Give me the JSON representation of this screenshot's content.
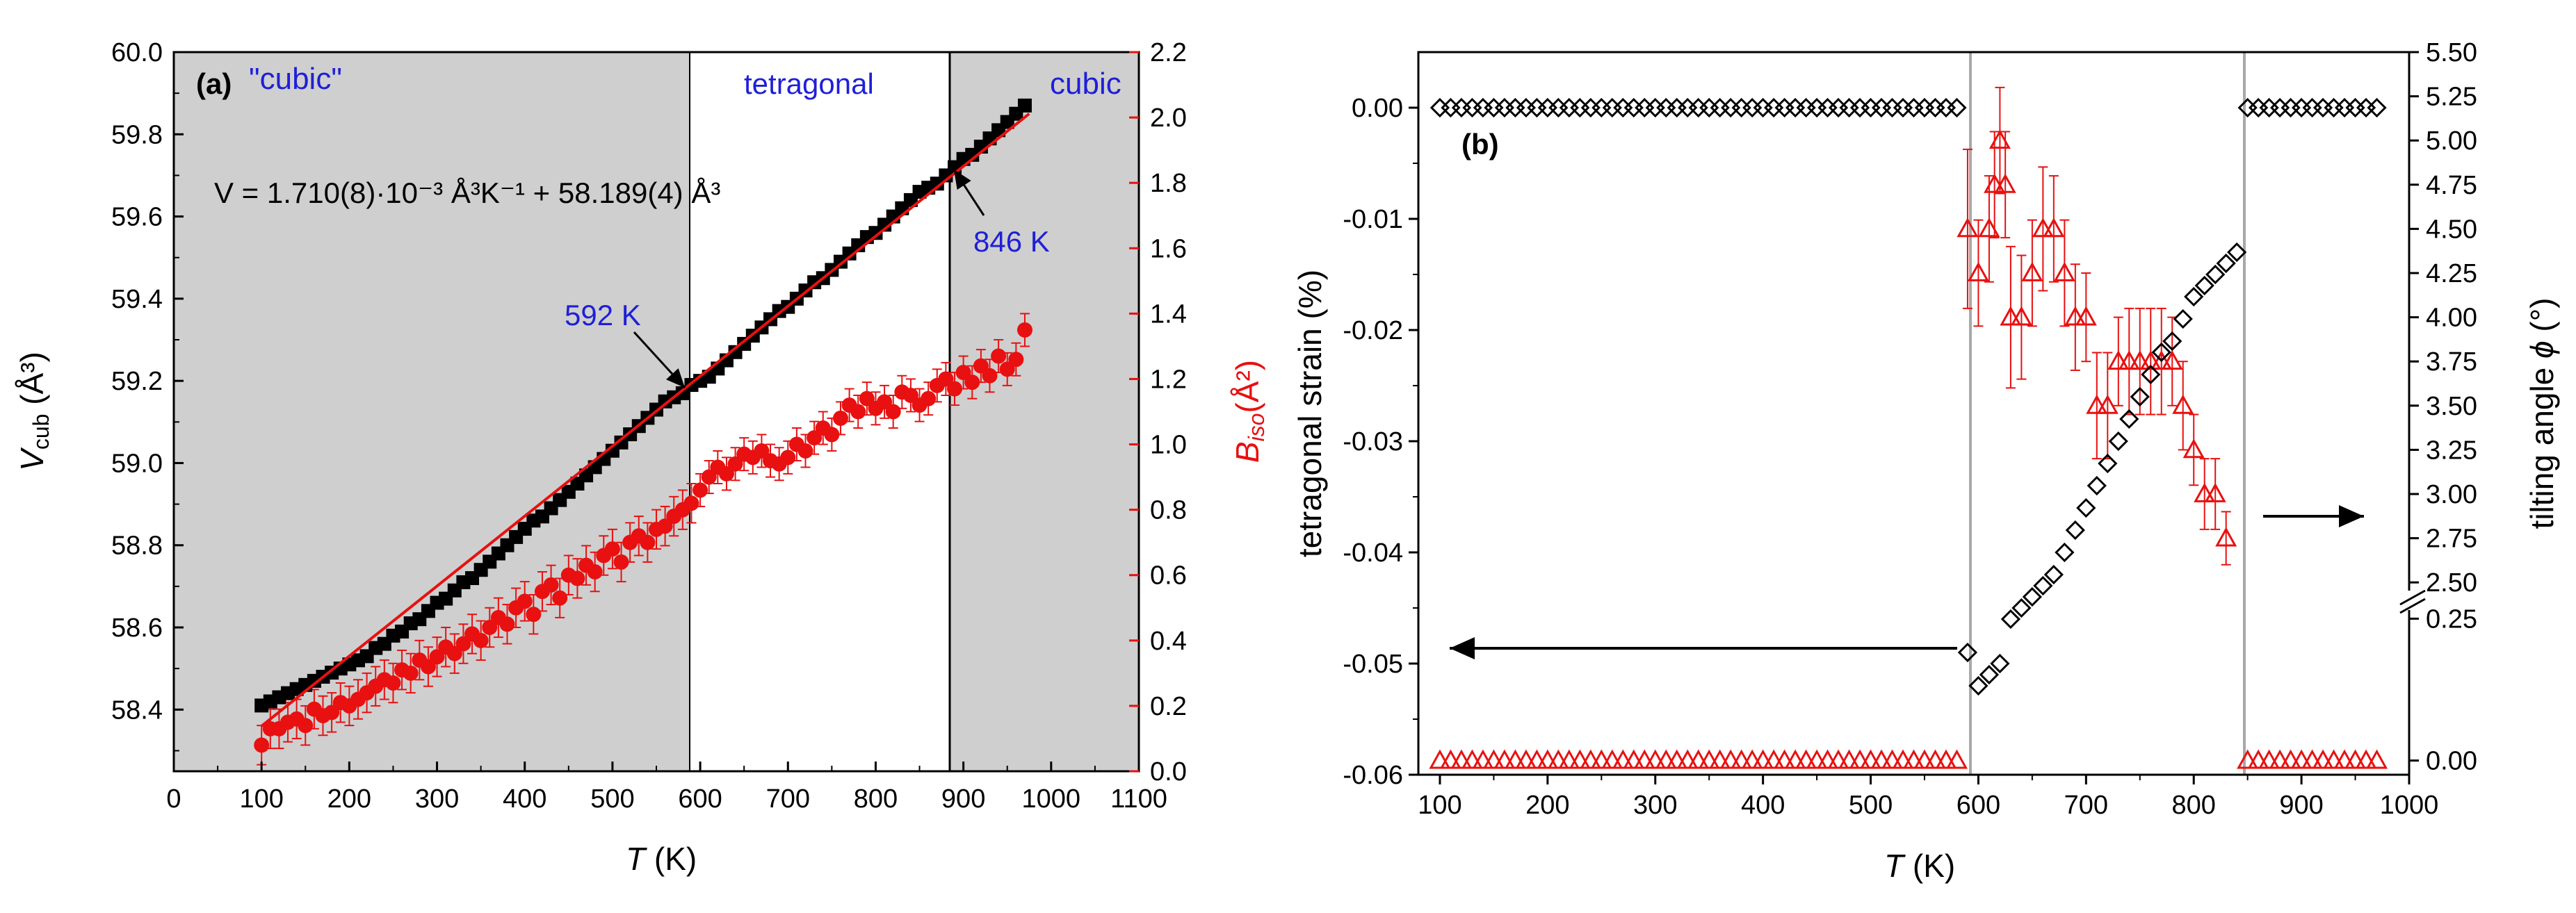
{
  "chart_data": [
    {
      "panel_label": "(a)",
      "type": "scatter",
      "title": "",
      "xlabel_italic": "T",
      "xlabel_unit": " (K)",
      "xlim": [
        0,
        1100
      ],
      "x_ticks": [
        "0",
        "100",
        "200",
        "300",
        "400",
        "500",
        "600",
        "700",
        "800",
        "900",
        "1000",
        "1100"
      ],
      "ylabel_left_main": "V",
      "ylabel_left_sub": "cub",
      "ylabel_left_unit": " (Å³)",
      "ylim_left": [
        58.25,
        60.0
      ],
      "y_ticks_left": [
        "58.4",
        "58.6",
        "58.8",
        "59.0",
        "59.2",
        "59.4",
        "59.6",
        "59.8",
        "60.0"
      ],
      "ylabel_right_main": "B",
      "ylabel_right_sub": "iso",
      "ylabel_right_unit": "(Å²)",
      "ylim_right": [
        0.0,
        2.2
      ],
      "y_ticks_right": [
        "0.0",
        "0.2",
        "0.4",
        "0.6",
        "0.8",
        "1.0",
        "1.2",
        "1.4",
        "1.6",
        "1.8",
        "2.0",
        "2.2"
      ],
      "shaded_regions_T": [
        [
          0,
          592
        ],
        [
          883,
          1100
        ]
      ],
      "region_labels": {
        "left": "\"cubic\"",
        "middle": "tetragonal",
        "right": "cubic"
      },
      "equation": "V = 1.710(8)·10⁻³ Å³K⁻¹ + 58.189(4) Å³",
      "annotations": [
        {
          "text": "592 K",
          "x": 592,
          "y": 59.19
        },
        {
          "text": "846 K",
          "x": 883,
          "y": 59.74
        }
      ],
      "fit_line": {
        "name": "linear fit",
        "x": [
          100,
          975
        ],
        "y": [
          58.36,
          59.85
        ]
      },
      "series": [
        {
          "name": "V_cub",
          "axis": "left",
          "marker": "square",
          "color": "#000000",
          "x": [
            100,
            110,
            120,
            130,
            140,
            150,
            160,
            170,
            180,
            190,
            200,
            210,
            220,
            230,
            240,
            250,
            260,
            270,
            280,
            290,
            300,
            310,
            320,
            330,
            340,
            350,
            360,
            370,
            380,
            390,
            400,
            410,
            420,
            430,
            440,
            450,
            460,
            470,
            480,
            490,
            500,
            510,
            520,
            530,
            540,
            550,
            560,
            570,
            580,
            590,
            600,
            610,
            620,
            630,
            640,
            650,
            660,
            670,
            680,
            690,
            700,
            710,
            720,
            730,
            740,
            750,
            760,
            770,
            780,
            790,
            800,
            810,
            820,
            830,
            840,
            850,
            860,
            870,
            880,
            890,
            900,
            910,
            920,
            930,
            940,
            950,
            960,
            970
          ],
          "y": [
            58.41,
            58.42,
            58.43,
            58.44,
            58.45,
            58.46,
            58.47,
            58.48,
            58.49,
            58.5,
            58.51,
            58.52,
            58.53,
            58.55,
            58.56,
            58.58,
            58.59,
            58.61,
            58.62,
            58.64,
            58.66,
            58.67,
            58.69,
            58.71,
            58.72,
            58.74,
            58.76,
            58.78,
            58.8,
            58.82,
            58.84,
            58.86,
            58.87,
            58.89,
            58.91,
            58.93,
            58.95,
            58.97,
            58.99,
            59.01,
            59.03,
            59.05,
            59.07,
            59.09,
            59.11,
            59.13,
            59.15,
            59.16,
            59.17,
            59.19,
            59.2,
            59.21,
            59.23,
            59.25,
            59.27,
            59.29,
            59.31,
            59.33,
            59.35,
            59.37,
            59.38,
            59.4,
            59.42,
            59.44,
            59.45,
            59.47,
            59.49,
            59.51,
            59.53,
            59.55,
            59.56,
            59.58,
            59.6,
            59.62,
            59.64,
            59.66,
            59.67,
            59.68,
            59.7,
            59.72,
            59.74,
            59.75,
            59.77,
            59.79,
            59.81,
            59.83,
            59.85,
            59.87
          ]
        },
        {
          "name": "B_iso",
          "axis": "right",
          "marker": "circle",
          "color": "#e81010",
          "error_bars": true,
          "x": [
            100,
            110,
            120,
            130,
            140,
            150,
            160,
            170,
            180,
            190,
            200,
            210,
            220,
            230,
            240,
            250,
            260,
            270,
            280,
            290,
            300,
            310,
            320,
            330,
            340,
            350,
            360,
            370,
            380,
            390,
            400,
            410,
            420,
            430,
            440,
            450,
            460,
            470,
            480,
            490,
            500,
            510,
            520,
            530,
            540,
            550,
            560,
            570,
            580,
            590,
            600,
            610,
            620,
            630,
            640,
            650,
            660,
            670,
            680,
            690,
            700,
            710,
            720,
            730,
            740,
            750,
            760,
            770,
            780,
            790,
            800,
            810,
            820,
            830,
            840,
            850,
            860,
            870,
            880,
            890,
            900,
            910,
            920,
            930,
            940,
            950,
            960,
            970
          ],
          "y": [
            0.08,
            0.13,
            0.13,
            0.15,
            0.16,
            0.14,
            0.19,
            0.17,
            0.18,
            0.21,
            0.2,
            0.22,
            0.24,
            0.26,
            0.28,
            0.27,
            0.31,
            0.3,
            0.34,
            0.32,
            0.35,
            0.38,
            0.36,
            0.39,
            0.42,
            0.4,
            0.44,
            0.47,
            0.45,
            0.5,
            0.52,
            0.48,
            0.55,
            0.57,
            0.53,
            0.6,
            0.59,
            0.63,
            0.61,
            0.66,
            0.68,
            0.64,
            0.7,
            0.72,
            0.7,
            0.74,
            0.75,
            0.78,
            0.8,
            0.82,
            0.86,
            0.9,
            0.93,
            0.91,
            0.94,
            0.97,
            0.96,
            0.98,
            0.95,
            0.94,
            0.96,
            1.0,
            0.98,
            1.02,
            1.05,
            1.03,
            1.08,
            1.12,
            1.1,
            1.14,
            1.11,
            1.13,
            1.1,
            1.16,
            1.15,
            1.12,
            1.14,
            1.18,
            1.2,
            1.17,
            1.22,
            1.19,
            1.24,
            1.21,
            1.27,
            1.23,
            1.26,
            1.35
          ],
          "err": [
            0.06,
            0.06,
            0.06,
            0.06,
            0.06,
            0.06,
            0.06,
            0.06,
            0.06,
            0.06,
            0.06,
            0.06,
            0.06,
            0.06,
            0.06,
            0.06,
            0.06,
            0.06,
            0.06,
            0.06,
            0.06,
            0.06,
            0.06,
            0.06,
            0.06,
            0.06,
            0.06,
            0.06,
            0.06,
            0.06,
            0.06,
            0.06,
            0.06,
            0.06,
            0.06,
            0.06,
            0.06,
            0.06,
            0.06,
            0.06,
            0.06,
            0.06,
            0.06,
            0.06,
            0.06,
            0.06,
            0.06,
            0.06,
            0.06,
            0.06,
            0.05,
            0.05,
            0.05,
            0.05,
            0.05,
            0.05,
            0.05,
            0.05,
            0.05,
            0.05,
            0.05,
            0.05,
            0.05,
            0.05,
            0.05,
            0.05,
            0.05,
            0.05,
            0.05,
            0.05,
            0.05,
            0.05,
            0.05,
            0.05,
            0.05,
            0.05,
            0.05,
            0.05,
            0.05,
            0.05,
            0.05,
            0.05,
            0.05,
            0.05,
            0.05,
            0.05,
            0.05,
            0.05
          ]
        }
      ]
    },
    {
      "panel_label": "(b)",
      "type": "scatter",
      "title": "",
      "xlabel_italic": "T",
      "xlabel_unit": " (K)",
      "xlim": [
        80,
        1000
      ],
      "x_ticks": [
        "100",
        "200",
        "300",
        "400",
        "500",
        "600",
        "700",
        "800",
        "900",
        "1000"
      ],
      "ylabel_left": "tetragonal strain (%)",
      "ylim_left": [
        -0.06,
        0.005
      ],
      "y_ticks_left": [
        "0.00",
        "-0.01",
        "-0.02",
        "-0.03",
        "-0.04",
        "-0.05",
        "-0.06"
      ],
      "ylabel_right_text": "tilting angle ",
      "ylabel_right_symbol": "ϕ",
      "ylabel_right_unit": " (°)",
      "y_ticks_right_upper": [
        "2.50",
        "2.75",
        "3.00",
        "3.25",
        "3.50",
        "3.75",
        "4.00",
        "4.25",
        "4.50",
        "4.75",
        "5.00",
        "5.25",
        "5.50"
      ],
      "ylim_right_upper": [
        2.375,
        5.5
      ],
      "y_ticks_right_lower": [
        "0.00",
        "0.25"
      ],
      "ylim_right_lower": [
        -0.025,
        0.275
      ],
      "phase_boundaries_T": [
        588,
        843
      ],
      "series": [
        {
          "name": "tetragonal strain",
          "axis": "left",
          "marker": "diamond",
          "color": "#000000",
          "x": [
            100,
            110,
            120,
            130,
            140,
            150,
            160,
            170,
            180,
            190,
            200,
            210,
            220,
            230,
            240,
            250,
            260,
            270,
            280,
            290,
            300,
            310,
            320,
            330,
            340,
            350,
            360,
            370,
            380,
            390,
            400,
            410,
            420,
            430,
            440,
            450,
            460,
            470,
            480,
            490,
            500,
            510,
            520,
            530,
            540,
            550,
            560,
            570,
            580,
            590,
            600,
            610,
            620,
            630,
            640,
            650,
            660,
            670,
            680,
            690,
            700,
            710,
            720,
            730,
            740,
            750,
            760,
            770,
            780,
            790,
            800,
            810,
            820,
            830,
            840,
            850,
            860,
            870,
            880,
            890,
            900,
            910,
            920,
            930,
            940,
            950,
            960,
            970
          ],
          "y": [
            0,
            0,
            0,
            0,
            0,
            0,
            0,
            0,
            0,
            0,
            0,
            0,
            0,
            0,
            0,
            0,
            0,
            0,
            0,
            0,
            0,
            0,
            0,
            0,
            0,
            0,
            0,
            0,
            0,
            0,
            0,
            0,
            0,
            0,
            0,
            0,
            0,
            0,
            0,
            0,
            0,
            0,
            0,
            0,
            0,
            0,
            0,
            0,
            0,
            -0.049,
            -0.052,
            -0.051,
            -0.05,
            -0.046,
            -0.045,
            -0.044,
            -0.043,
            -0.042,
            -0.04,
            -0.038,
            -0.036,
            -0.034,
            -0.032,
            -0.03,
            -0.028,
            -0.026,
            -0.024,
            -0.022,
            -0.021,
            -0.019,
            -0.017,
            -0.016,
            -0.015,
            -0.014,
            -0.013,
            0,
            0,
            0,
            0,
            0,
            0,
            0,
            0,
            0,
            0,
            0,
            0,
            0
          ]
        },
        {
          "name": "tilting angle",
          "axis": "right",
          "marker": "triangle",
          "color": "#e81010",
          "error_bars": true,
          "x": [
            100,
            110,
            120,
            130,
            140,
            150,
            160,
            170,
            180,
            190,
            200,
            210,
            220,
            230,
            240,
            250,
            260,
            270,
            280,
            290,
            300,
            310,
            320,
            330,
            340,
            350,
            360,
            370,
            380,
            390,
            400,
            410,
            420,
            430,
            440,
            450,
            460,
            470,
            480,
            490,
            500,
            510,
            520,
            530,
            540,
            550,
            560,
            570,
            580,
            590,
            600,
            610,
            615,
            620,
            625,
            630,
            640,
            650,
            660,
            670,
            680,
            690,
            700,
            710,
            720,
            730,
            740,
            750,
            760,
            770,
            780,
            790,
            800,
            810,
            820,
            830,
            850,
            860,
            870,
            880,
            890,
            900,
            910,
            920,
            930,
            940,
            950,
            960,
            970
          ],
          "y": [
            0,
            0,
            0,
            0,
            0,
            0,
            0,
            0,
            0,
            0,
            0,
            0,
            0,
            0,
            0,
            0,
            0,
            0,
            0,
            0,
            0,
            0,
            0,
            0,
            0,
            0,
            0,
            0,
            0,
            0,
            0,
            0,
            0,
            0,
            0,
            0,
            0,
            0,
            0,
            0,
            0,
            0,
            0,
            0,
            0,
            0,
            0,
            0,
            0,
            4.5,
            4.25,
            4.5,
            4.75,
            5.0,
            4.75,
            4.0,
            4.0,
            4.25,
            4.5,
            4.5,
            4.25,
            4.0,
            4.0,
            3.5,
            3.5,
            3.75,
            3.75,
            3.75,
            3.75,
            3.75,
            3.75,
            3.5,
            3.25,
            3.0,
            3.0,
            2.75,
            0,
            0,
            0,
            0,
            0,
            0,
            0,
            0,
            0,
            0,
            0,
            0,
            0
          ],
          "err": [
            0,
            0,
            0,
            0,
            0,
            0,
            0,
            0,
            0,
            0,
            0,
            0,
            0,
            0,
            0,
            0,
            0,
            0,
            0,
            0,
            0,
            0,
            0,
            0,
            0,
            0,
            0,
            0,
            0,
            0,
            0,
            0,
            0,
            0,
            0,
            0,
            0,
            0,
            0,
            0,
            0,
            0,
            0,
            0,
            0,
            0,
            0,
            0,
            0,
            0.45,
            0.3,
            0.3,
            0.3,
            0.3,
            0.3,
            0.4,
            0.35,
            0.3,
            0.35,
            0.3,
            0.3,
            0.3,
            0.25,
            0.3,
            0.3,
            0.25,
            0.3,
            0.3,
            0.3,
            0.3,
            0.25,
            0.25,
            0.2,
            0.2,
            0.2,
            0.15,
            0,
            0,
            0,
            0,
            0,
            0,
            0,
            0,
            0,
            0,
            0,
            0,
            0
          ]
        }
      ]
    }
  ]
}
